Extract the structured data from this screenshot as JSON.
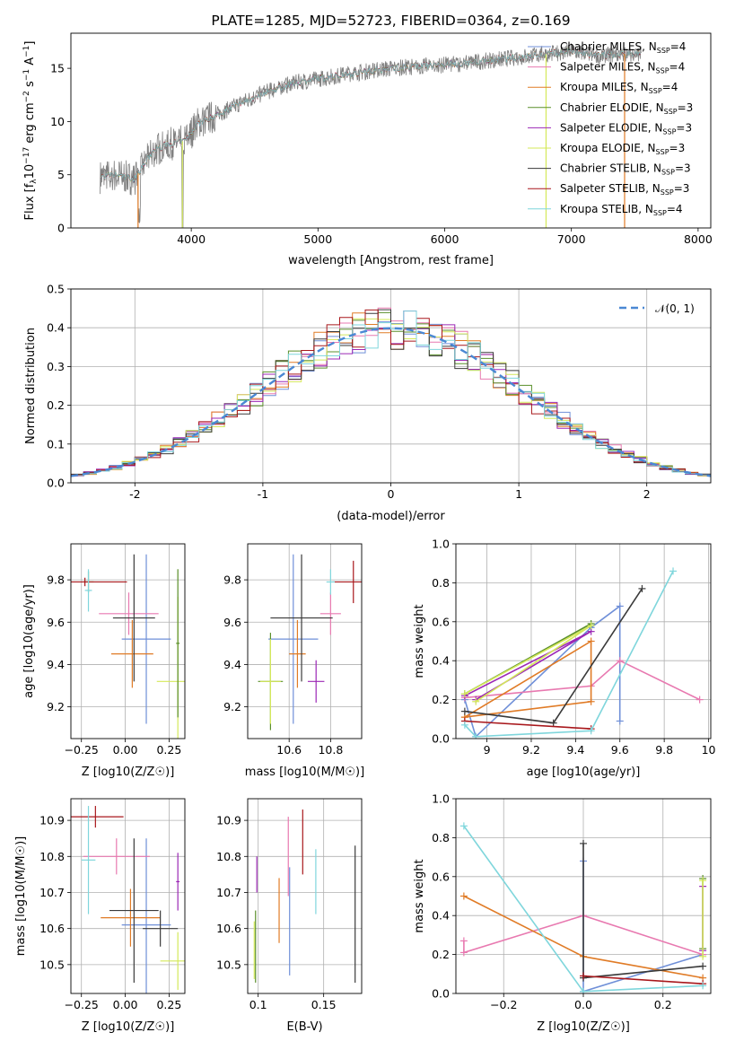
{
  "chart_data": [
    {
      "id": "spectrum",
      "type": "line",
      "title": "PLATE=1285, MJD=52723, FIBERID=0364, z=0.169",
      "xlabel": "wavelength [Angstrom, rest frame]",
      "ylabel": "Flux [f_λ10^-17 erg cm^-2 s^-1 A^-1]",
      "xlim": [
        3050,
        8100
      ],
      "ylim": [
        0,
        18.3
      ],
      "xticks": [
        4000,
        5000,
        6000,
        7000,
        8000
      ],
      "yticks": [
        0,
        5,
        10,
        15
      ],
      "grid": false,
      "legend_position": "top-right",
      "series": [
        {
          "name": "Chabrier MILES, N_SSP=4",
          "color": "#6f8fd8"
        },
        {
          "name": "Salpeter MILES, N_SSP=4",
          "color": "#e879b0"
        },
        {
          "name": "Kroupa MILES, N_SSP=4",
          "color": "#e07b26"
        },
        {
          "name": "Chabrier ELODIE, N_SSP=3",
          "color": "#5a8f2a"
        },
        {
          "name": "Salpeter ELODIE, N_SSP=3",
          "color": "#9b27b5"
        },
        {
          "name": "Kroupa ELODIE, N_SSP=3",
          "color": "#d4e85a"
        },
        {
          "name": "Chabrier STELIB, N_SSP=3",
          "color": "#3a3a3a"
        },
        {
          "name": "Salpeter STELIB, N_SSP=3",
          "color": "#a8171b"
        },
        {
          "name": "Kroupa STELIB, N_SSP=4",
          "color": "#7fd6dc"
        }
      ],
      "data_color": "#808080",
      "continuum_points": [
        [
          3280,
          4.8
        ],
        [
          3400,
          5.0
        ],
        [
          3550,
          4.6
        ],
        [
          3700,
          7.2
        ],
        [
          3800,
          7.8
        ],
        [
          3950,
          8.2
        ],
        [
          4050,
          9.8
        ],
        [
          4200,
          10.6
        ],
        [
          4400,
          11.8
        ],
        [
          4600,
          12.8
        ],
        [
          4800,
          13.6
        ],
        [
          5000,
          14.0
        ],
        [
          5200,
          14.4
        ],
        [
          5500,
          14.9
        ],
        [
          5800,
          15.2
        ],
        [
          6100,
          15.4
        ],
        [
          6400,
          15.8
        ],
        [
          6700,
          16.2
        ],
        [
          7000,
          16.6
        ],
        [
          7200,
          16.2
        ],
        [
          7500,
          16.4
        ]
      ]
    },
    {
      "id": "residuals",
      "type": "line",
      "xlabel": "(data-model)/error",
      "ylabel": "Normed distribution",
      "xlim": [
        -2.5,
        2.5
      ],
      "ylim": [
        0,
        0.5
      ],
      "xticks": [
        -2,
        -1,
        0,
        1,
        2
      ],
      "yticks": [
        0.0,
        0.1,
        0.2,
        0.3,
        0.4,
        0.5
      ],
      "grid": true,
      "legend": "𝒩(0, 1)",
      "legend_position": "top-right",
      "gaussian_color": "#4a88d4",
      "bin_width": 0.1
    },
    {
      "id": "age_vs_Z",
      "type": "scatter",
      "xlabel": "Z [log10(Z/Z☉)]",
      "ylabel": "age  [log10(age/yr)]",
      "xlim": [
        -0.31,
        0.34
      ],
      "ylim": [
        9.05,
        9.97
      ],
      "xticks": [
        -0.25,
        0.0,
        0.25
      ],
      "xtick_labels": [
        "−0.25",
        "0.00",
        "0.25"
      ],
      "yticks": [
        9.2,
        9.4,
        9.6,
        9.8
      ],
      "grid": true,
      "points": [
        {
          "x": 0.12,
          "y": 9.52,
          "xerr": 0.14,
          "yerr": 0.4,
          "color": "#6f8fd8"
        },
        {
          "x": 0.02,
          "y": 9.64,
          "xerr": 0.17,
          "yerr": 0.1,
          "color": "#e879b0"
        },
        {
          "x": 0.04,
          "y": 9.45,
          "xerr": 0.12,
          "yerr": 0.16,
          "color": "#e07b26"
        },
        {
          "x": -0.21,
          "y": 9.79,
          "xerr": 0.03,
          "yerr": 0.05,
          "color": "#5a8f2a"
        },
        {
          "x": 0.05,
          "y": 9.62,
          "xerr": 0.12,
          "yerr": 0.3,
          "color": "#3a3a3a"
        },
        {
          "x": -0.23,
          "y": 9.79,
          "xerr": 0.24,
          "yerr": 0.02,
          "color": "#a8171b"
        },
        {
          "x": -0.21,
          "y": 9.75,
          "xerr": 0.02,
          "yerr": 0.1,
          "color": "#7fd6dc"
        },
        {
          "x": 0.3,
          "y": 9.32,
          "xerr": 0.12,
          "yerr": 0.4,
          "color": "#d4e85a"
        },
        {
          "x": 0.3,
          "y": 9.5,
          "xerr": 0.01,
          "yerr": 0.35,
          "color": "#5a8f2a"
        }
      ]
    },
    {
      "id": "age_vs_mass",
      "type": "scatter",
      "xlabel": "mass [log10(M/M☉)]",
      "xlim": [
        10.4,
        10.95
      ],
      "ylim": [
        9.05,
        9.97
      ],
      "xticks": [
        10.6,
        10.8
      ],
      "yticks": [
        9.2,
        9.4,
        9.6,
        9.8
      ],
      "grid": true,
      "points": [
        {
          "x": 10.62,
          "y": 9.52,
          "xerr": 0.12,
          "yerr": 0.4,
          "color": "#6f8fd8"
        },
        {
          "x": 10.8,
          "y": 9.64,
          "xerr": 0.05,
          "yerr": 0.1,
          "color": "#e879b0"
        },
        {
          "x": 10.64,
          "y": 9.45,
          "xerr": 0.04,
          "yerr": 0.16,
          "color": "#e07b26"
        },
        {
          "x": 10.51,
          "y": 9.32,
          "xerr": 0.06,
          "yerr": 0.23,
          "color": "#5a8f2a"
        },
        {
          "x": 10.73,
          "y": 9.32,
          "xerr": 0.04,
          "yerr": 0.1,
          "color": "#9b27b5"
        },
        {
          "x": 10.51,
          "y": 9.32,
          "xerr": 0.05,
          "yerr": 0.2,
          "color": "#d4e85a"
        },
        {
          "x": 10.66,
          "y": 9.62,
          "xerr": 0.15,
          "yerr": 0.3,
          "color": "#3a3a3a"
        },
        {
          "x": 10.91,
          "y": 9.79,
          "xerr": 0.1,
          "yerr": 0.1,
          "color": "#a8171b"
        },
        {
          "x": 10.8,
          "y": 9.79,
          "xerr": 0.02,
          "yerr": 0.06,
          "color": "#7fd6dc"
        }
      ]
    },
    {
      "id": "massweight_vs_age",
      "type": "line",
      "xlabel": "age  [log10(age/yr)]",
      "ylabel": "mass weight",
      "xlim": [
        8.86,
        10.01
      ],
      "ylim": [
        0,
        1.0
      ],
      "xticks": [
        9.0,
        9.2,
        9.4,
        9.6,
        9.8,
        10.0
      ],
      "yticks": [
        0.0,
        0.2,
        0.4,
        0.6,
        0.8,
        1.0
      ],
      "grid": true,
      "series": [
        {
          "color": "#6f8fd8",
          "x": [
            8.9,
            8.95,
            9.47,
            9.6,
            9.6
          ],
          "y": [
            0.2,
            0.01,
            0.57,
            0.68,
            0.09
          ]
        },
        {
          "color": "#e879b0",
          "x": [
            8.9,
            9.47,
            9.6,
            9.96
          ],
          "y": [
            0.21,
            0.27,
            0.4,
            0.2
          ]
        },
        {
          "color": "#e07b26",
          "x": [
            8.9,
            9.47,
            9.47,
            8.9
          ],
          "y": [
            0.11,
            0.5,
            0.19,
            0.11
          ]
        },
        {
          "color": "#5a8f2a",
          "x": [
            8.9,
            9.47
          ],
          "y": [
            0.23,
            0.59
          ]
        },
        {
          "color": "#9b27b5",
          "x": [
            8.9,
            9.47,
            8.95
          ],
          "y": [
            0.22,
            0.55,
            0.2
          ]
        },
        {
          "color": "#d4e85a",
          "x": [
            8.9,
            9.47,
            8.95
          ],
          "y": [
            0.23,
            0.58,
            0.19
          ]
        },
        {
          "color": "#3a3a3a",
          "x": [
            8.9,
            9.3,
            9.7
          ],
          "y": [
            0.14,
            0.08,
            0.77
          ]
        },
        {
          "color": "#a8171b",
          "x": [
            8.9,
            9.47
          ],
          "y": [
            0.09,
            0.05
          ]
        },
        {
          "color": "#7fd6dc",
          "x": [
            8.9,
            8.95,
            9.47,
            9.84
          ],
          "y": [
            0.07,
            0.01,
            0.04,
            0.86
          ]
        }
      ]
    },
    {
      "id": "mass_vs_Z",
      "type": "scatter",
      "xlabel": "Z [log10(Z/Z☉)]",
      "ylabel": "mass [log10(M/M☉)]",
      "xlim": [
        -0.31,
        0.34
      ],
      "ylim": [
        10.42,
        10.96
      ],
      "xticks": [
        -0.25,
        0.0,
        0.25
      ],
      "xtick_labels": [
        "−0.25",
        "0.00",
        "0.25"
      ],
      "yticks": [
        10.5,
        10.6,
        10.7,
        10.8,
        10.9
      ],
      "grid": true,
      "points": [
        {
          "x": 0.12,
          "y": 10.61,
          "xerr": 0.14,
          "yerr": 0.24,
          "color": "#6f8fd8"
        },
        {
          "x": -0.05,
          "y": 10.8,
          "xerr": 0.19,
          "yerr": 0.05,
          "color": "#e879b0"
        },
        {
          "x": 0.03,
          "y": 10.63,
          "xerr": 0.17,
          "yerr": 0.08,
          "color": "#e07b26"
        },
        {
          "x": 0.05,
          "y": 10.65,
          "xerr": 0.14,
          "yerr": 0.2,
          "color": "#3a3a3a"
        },
        {
          "x": -0.17,
          "y": 10.91,
          "xerr": 0.16,
          "yerr": 0.03,
          "color": "#a8171b"
        },
        {
          "x": -0.21,
          "y": 10.79,
          "xerr": 0.04,
          "yerr": 0.15,
          "color": "#7fd6dc"
        },
        {
          "x": 0.3,
          "y": 10.51,
          "xerr": 0.1,
          "yerr": 0.08,
          "color": "#d4e85a"
        },
        {
          "x": 0.3,
          "y": 10.73,
          "xerr": 0.01,
          "yerr": 0.08,
          "color": "#9b27b5"
        },
        {
          "x": 0.2,
          "y": 10.6,
          "xerr": 0.1,
          "yerr": 0.05,
          "color": "#3a3a3a"
        }
      ]
    },
    {
      "id": "mass_vs_EBV",
      "type": "scatter",
      "xlabel": "E(B-V)",
      "xlim": [
        0.092,
        0.179
      ],
      "ylim": [
        10.42,
        10.96
      ],
      "xticks": [
        0.1,
        0.15
      ],
      "yticks": [
        10.5,
        10.6,
        10.7,
        10.8,
        10.9
      ],
      "grid": true,
      "points": [
        {
          "x": 0.124,
          "y": 10.62,
          "yerr": 0.15,
          "color": "#6f8fd8"
        },
        {
          "x": 0.123,
          "y": 10.8,
          "yerr": 0.11,
          "color": "#e879b0"
        },
        {
          "x": 0.116,
          "y": 10.65,
          "yerr": 0.09,
          "color": "#e07b26"
        },
        {
          "x": 0.098,
          "y": 10.55,
          "yerr": 0.1,
          "color": "#5a8f2a"
        },
        {
          "x": 0.099,
          "y": 10.75,
          "yerr": 0.05,
          "color": "#9b27b5"
        },
        {
          "x": 0.097,
          "y": 10.54,
          "yerr": 0.08,
          "color": "#d4e85a"
        },
        {
          "x": 0.174,
          "y": 10.64,
          "yerr": 0.19,
          "color": "#3a3a3a"
        },
        {
          "x": 0.134,
          "y": 10.84,
          "yerr": 0.09,
          "color": "#a8171b"
        },
        {
          "x": 0.144,
          "y": 10.73,
          "yerr": 0.09,
          "color": "#7fd6dc"
        }
      ]
    },
    {
      "id": "massweight_vs_Z",
      "type": "line",
      "xlabel": "Z [log10(Z/Z☉)]",
      "ylabel": "mass weight",
      "xlim": [
        -0.32,
        0.32
      ],
      "ylim": [
        0,
        1.0
      ],
      "xticks": [
        -0.2,
        0.0,
        0.2
      ],
      "xtick_labels": [
        "−0.2",
        "0.0",
        "0.2"
      ],
      "yticks": [
        0.0,
        0.2,
        0.4,
        0.6,
        0.8,
        1.0
      ],
      "grid": true,
      "series": [
        {
          "color": "#6f8fd8",
          "x": [
            0.0,
            0.0,
            0.3
          ],
          "y": [
            0.68,
            0.01,
            0.2
          ]
        },
        {
          "color": "#e879b0",
          "x": [
            -0.3,
            -0.3,
            0.0,
            0.3
          ],
          "y": [
            0.27,
            0.21,
            0.4,
            0.2
          ]
        },
        {
          "color": "#e07b26",
          "x": [
            -0.3,
            0.0,
            0.3
          ],
          "y": [
            0.5,
            0.19,
            0.08
          ]
        },
        {
          "color": "#5a8f2a",
          "x": [
            0.3,
            0.3
          ],
          "y": [
            0.59,
            0.23
          ]
        },
        {
          "color": "#9b27b5",
          "x": [
            0.3,
            0.3
          ],
          "y": [
            0.55,
            0.22
          ]
        },
        {
          "color": "#d4e85a",
          "x": [
            0.3,
            0.3
          ],
          "y": [
            0.58,
            0.19
          ]
        },
        {
          "color": "#3a3a3a",
          "x": [
            0.0,
            0.0,
            0.3
          ],
          "y": [
            0.77,
            0.08,
            0.14
          ]
        },
        {
          "color": "#a8171b",
          "x": [
            0.0,
            0.3
          ],
          "y": [
            0.09,
            0.05
          ]
        },
        {
          "color": "#7fd6dc",
          "x": [
            -0.3,
            0.0,
            0.3
          ],
          "y": [
            0.86,
            0.01,
            0.04
          ]
        }
      ]
    }
  ]
}
